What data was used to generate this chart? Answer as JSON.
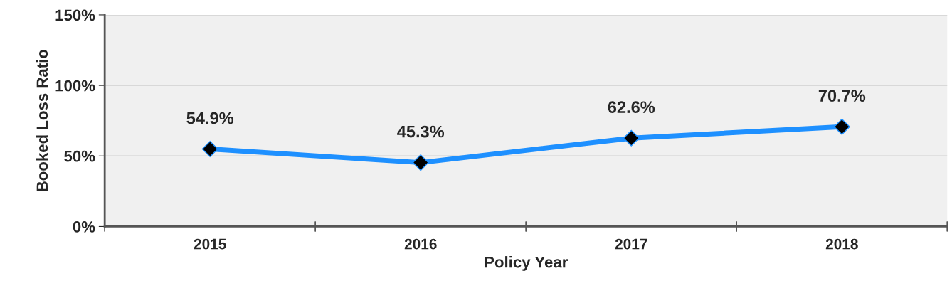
{
  "chart_data": {
    "type": "line",
    "xlabel": "Policy Year",
    "ylabel": "Booked Loss Ratio",
    "categories": [
      "2015",
      "2016",
      "2017",
      "2018"
    ],
    "series": [
      {
        "color": "#1e90ff",
        "values": [
          54.9,
          45.3,
          62.6,
          70.7
        ]
      }
    ],
    "value_labels": [
      "54.9%",
      "45.3%",
      "62.6%",
      "70.7%"
    ],
    "ylim": [
      0,
      150
    ],
    "yticks": [
      {
        "value": 0,
        "label": "0%"
      },
      {
        "value": 50,
        "label": "50%"
      },
      {
        "value": 100,
        "label": "100%"
      },
      {
        "value": 150,
        "label": "150%"
      }
    ],
    "grid": "y",
    "marker": "diamond",
    "line_style": "solid"
  }
}
